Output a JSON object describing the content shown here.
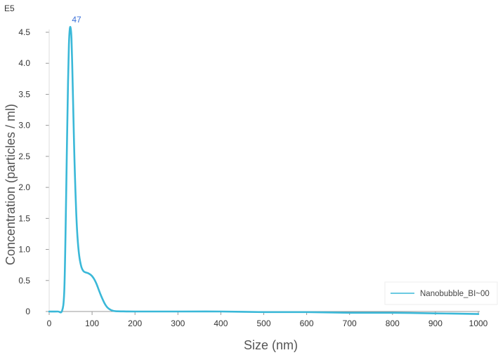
{
  "chart_data": {
    "type": "line",
    "title": "",
    "xlabel": "Size (nm)",
    "ylabel": "Concentration (particles / ml)",
    "y_multiplier_label": "E5",
    "xlim": [
      0,
      1000
    ],
    "ylim": [
      0,
      4.5
    ],
    "x_ticks": [
      0,
      100,
      200,
      300,
      400,
      500,
      600,
      700,
      800,
      900,
      1000
    ],
    "y_ticks": [
      0,
      0.5,
      1.0,
      1.5,
      2.0,
      2.5,
      3.0,
      3.5,
      4.0,
      4.5
    ],
    "y_tick_labels": [
      "0",
      "0.5",
      "1.0",
      "1.5",
      "2.0",
      "2.5",
      "3.0",
      "3.5",
      "4.0",
      "4.5"
    ],
    "grid": false,
    "legend_position": "bottom-right",
    "series": [
      {
        "name": "Nanobubble_BI~00",
        "color": "#3ab8d8",
        "x": [
          0,
          20,
          30,
          35,
          38,
          41,
          44,
          46,
          48,
          50,
          52,
          54,
          56,
          58,
          60,
          63,
          66,
          70,
          75,
          80,
          85,
          90,
          95,
          100,
          105,
          110,
          115,
          120,
          125,
          130,
          135,
          140,
          145,
          150,
          155,
          160,
          170,
          180,
          200,
          250,
          300,
          400,
          500,
          600,
          700,
          800,
          900,
          1000
        ],
        "y": [
          0,
          0,
          0.01,
          0.3,
          1.2,
          2.5,
          3.7,
          4.3,
          4.55,
          4.57,
          4.4,
          3.9,
          3.3,
          2.7,
          2.2,
          1.6,
          1.2,
          0.9,
          0.72,
          0.65,
          0.63,
          0.62,
          0.6,
          0.57,
          0.52,
          0.45,
          0.36,
          0.27,
          0.19,
          0.12,
          0.07,
          0.04,
          0.02,
          0.01,
          0.005,
          0.003,
          0.002,
          0.001,
          0,
          0,
          0,
          0,
          -0.01,
          -0.01,
          -0.02,
          -0.02,
          -0.03,
          -0.04
        ]
      }
    ],
    "annotations": [
      {
        "text": "47",
        "x": 48,
        "y": 4.57,
        "color": "#3a6fd8"
      }
    ]
  }
}
